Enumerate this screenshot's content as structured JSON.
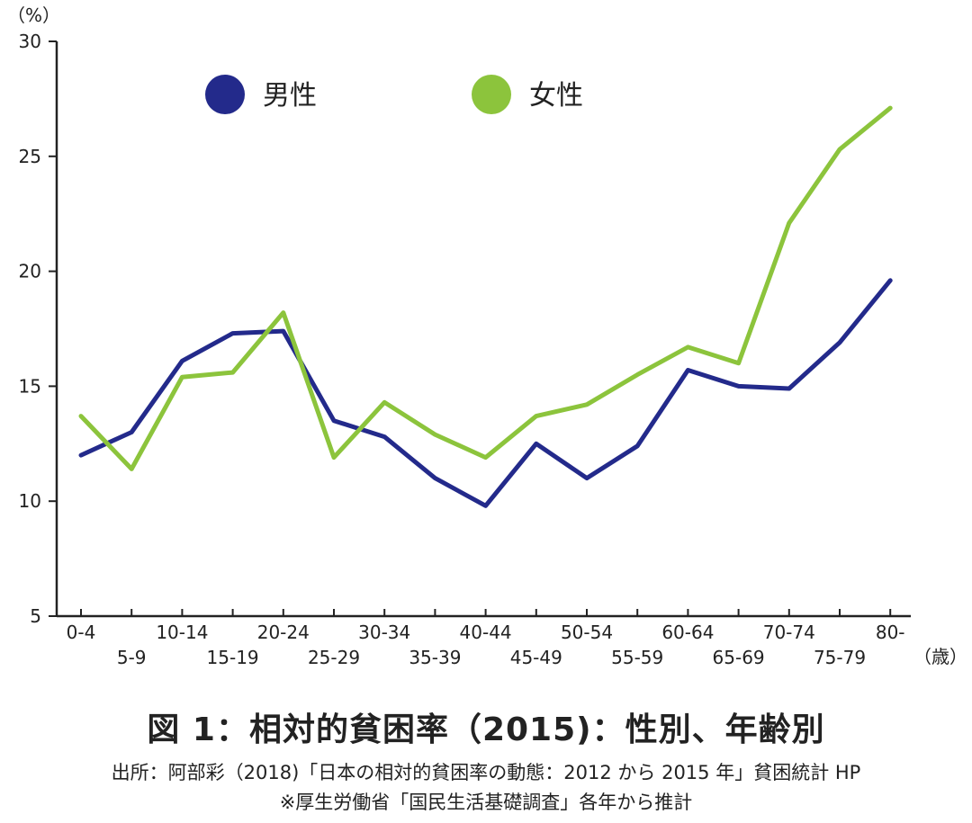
{
  "chart_data": {
    "type": "line",
    "y_unit_label": "（%）",
    "x_unit_label": "（歳）",
    "ylim": [
      5,
      30
    ],
    "y_ticks": [
      "5",
      "10",
      "15",
      "20",
      "25",
      "30"
    ],
    "categories": [
      "0-4",
      "5-9",
      "10-14",
      "15-19",
      "20-24",
      "25-29",
      "30-34",
      "35-39",
      "40-44",
      "45-49",
      "50-54",
      "55-59",
      "60-64",
      "65-69",
      "70-74",
      "75-79",
      "80-"
    ],
    "series": [
      {
        "name": "男性",
        "color": "#232a8b",
        "values": [
          12.0,
          13.0,
          16.1,
          17.3,
          17.4,
          13.5,
          12.8,
          11.0,
          9.8,
          12.5,
          11.0,
          12.4,
          15.7,
          15.0,
          14.9,
          16.9,
          19.6
        ]
      },
      {
        "name": "女性",
        "color": "#8cc43c",
        "values": [
          13.7,
          11.4,
          15.4,
          15.6,
          18.2,
          11.9,
          14.3,
          12.9,
          11.9,
          13.7,
          14.2,
          15.5,
          16.7,
          16.0,
          22.1,
          25.3,
          27.1
        ]
      }
    ],
    "legend_position": "top",
    "grid": false,
    "title": "図 1：相対的貧困率（2015)：性別、年齢別"
  },
  "source_line1": "出所：阿部彩（2018)「日本の相対的貧困率の動態：2012 から 2015 年」貧困統計 HP",
  "source_line2": "※厚生労働省「国民生活基礎調査」各年から推計"
}
